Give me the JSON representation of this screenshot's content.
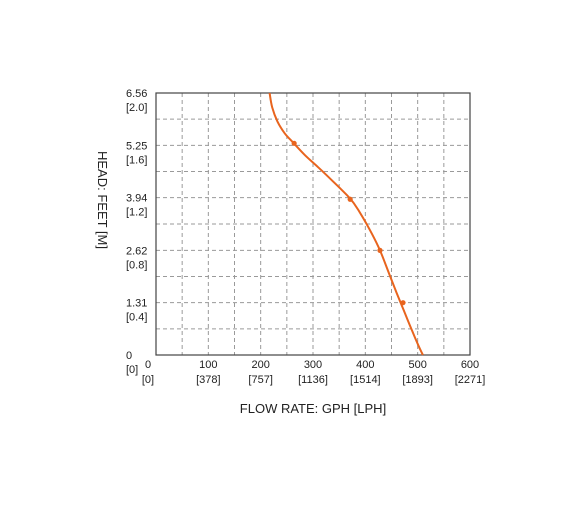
{
  "chart_data": {
    "type": "line",
    "title": "",
    "xlabel": "FLOW RATE: GPH [LPH]",
    "ylabel": "HEAD: FEET [M]",
    "xlim": [
      0,
      600
    ],
    "ylim": [
      0,
      6.56
    ],
    "grid": true,
    "x_ticks": [
      {
        "value": 0,
        "label": "0",
        "sub": "[0]"
      },
      {
        "value": 100,
        "label": "100",
        "sub": "[378]"
      },
      {
        "value": 200,
        "label": "200",
        "sub": "[757]"
      },
      {
        "value": 300,
        "label": "300",
        "sub": "[1136]"
      },
      {
        "value": 400,
        "label": "400",
        "sub": "[1514]"
      },
      {
        "value": 500,
        "label": "500",
        "sub": "[1893]"
      },
      {
        "value": 600,
        "label": "600",
        "sub": "[2271]"
      }
    ],
    "y_ticks": [
      {
        "value": 0,
        "label": "0",
        "sub": "[0]"
      },
      {
        "value": 1.31,
        "label": "1.31",
        "sub": "[0.4]"
      },
      {
        "value": 2.62,
        "label": "2.62",
        "sub": "[0.8]"
      },
      {
        "value": 3.94,
        "label": "3.94",
        "sub": "[1.2]"
      },
      {
        "value": 5.25,
        "label": "5.25",
        "sub": "[1.6]"
      },
      {
        "value": 6.56,
        "label": "6.56",
        "sub": "[2.0]"
      }
    ],
    "minor_grid_x": [
      50,
      150,
      250,
      350,
      450,
      550
    ],
    "minor_grid_y": [
      0.655,
      1.965,
      3.28,
      4.595,
      5.905
    ],
    "curve_points": [
      [
        217,
        6.56
      ],
      [
        222,
        6.2
      ],
      [
        232,
        5.85
      ],
      [
        246,
        5.55
      ],
      [
        262,
        5.32
      ],
      [
        285,
        5.0
      ],
      [
        310,
        4.7
      ],
      [
        338,
        4.35
      ],
      [
        365,
        4.0
      ],
      [
        378,
        3.8
      ],
      [
        395,
        3.45
      ],
      [
        412,
        3.05
      ],
      [
        428,
        2.62
      ],
      [
        445,
        2.05
      ],
      [
        460,
        1.55
      ],
      [
        474,
        1.1
      ],
      [
        488,
        0.65
      ],
      [
        502,
        0.22
      ],
      [
        510,
        0.0
      ]
    ],
    "markers": [
      [
        264,
        5.3
      ],
      [
        371,
        3.9
      ],
      [
        428,
        2.62
      ],
      [
        472,
        1.31
      ]
    ],
    "line_color": "#e8641e",
    "grid_color": "#9a9a9a"
  }
}
